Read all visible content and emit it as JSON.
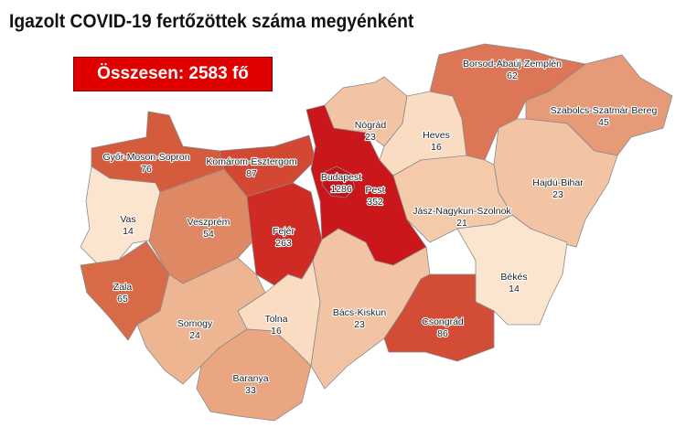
{
  "title": "Igazolt COVID-19 fertőzöttek száma megyénként",
  "total_label": "Összesen: 2583 fő",
  "regions": [
    {
      "name": "Győr-Moson-Sopron",
      "value": "76",
      "fill": "#d55b3d"
    },
    {
      "name": "Vas",
      "value": "14",
      "fill": "#fce5cf"
    },
    {
      "name": "Zala",
      "value": "65",
      "fill": "#d96a48"
    },
    {
      "name": "Veszprém",
      "value": "54",
      "fill": "#df8864"
    },
    {
      "name": "Komárom-Esztergom",
      "value": "87",
      "fill": "#d24833"
    },
    {
      "name": "Fejér",
      "value": "263",
      "fill": "#cf2a24"
    },
    {
      "name": "Pest",
      "value": "352",
      "fill": "#c9171b"
    },
    {
      "name": "Nógrád",
      "value": "23",
      "fill": "#f2c4a4"
    },
    {
      "name": "Heves",
      "value": "16",
      "fill": "#f9dcc2"
    },
    {
      "name": "Borsod-Abaúj-Zemplén",
      "value": "62",
      "fill": "#dc7657"
    },
    {
      "name": "Szabolcs-Szatmár-Bereg",
      "value": "45",
      "fill": "#e69a77"
    },
    {
      "name": "Hajdú-Bihar",
      "value": "23",
      "fill": "#f2c4a4"
    },
    {
      "name": "Jász-Nagykun-Szolnok",
      "value": "21",
      "fill": "#f4caab"
    },
    {
      "name": "Békés",
      "value": "14",
      "fill": "#fce5cf"
    },
    {
      "name": "Csongrád",
      "value": "86",
      "fill": "#d24c36"
    },
    {
      "name": "Bács-Kiskun",
      "value": "23",
      "fill": "#f2c4a4"
    },
    {
      "name": "Tolna",
      "value": "16",
      "fill": "#f9dcc2"
    },
    {
      "name": "Somogy",
      "value": "24",
      "fill": "#eeb592"
    },
    {
      "name": "Baranya",
      "value": "33",
      "fill": "#eaa581"
    },
    {
      "name": "Budapest",
      "value": "1286",
      "fill": "#c4121a"
    }
  ]
}
